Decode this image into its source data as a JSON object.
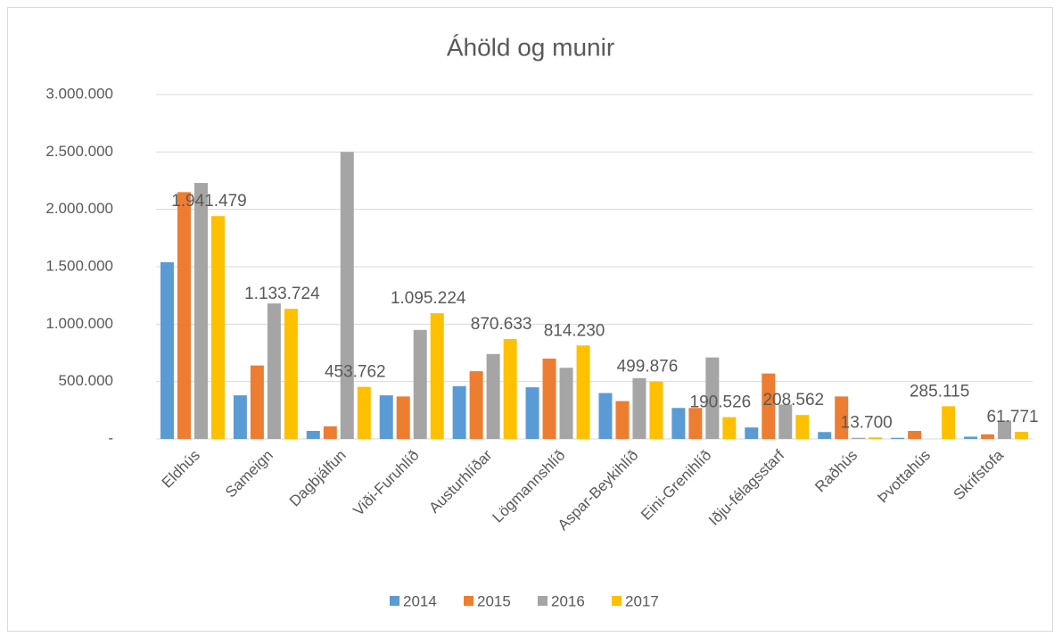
{
  "chart_data": {
    "type": "bar",
    "title": "Áhöld og munir",
    "categories": [
      "Eldhús",
      "Sameign",
      "Dagbjálfun",
      "Viði-Furuhlíð",
      "Austurhlíðar",
      "Lögmannshlíð",
      "Aspar-Beykihlíð",
      "Eini-Grenihlíð",
      "Iðju-félagsstarf",
      "Raðhús",
      "Þvottahús",
      "Skrifstofa"
    ],
    "series": [
      {
        "name": "2014",
        "color": "#5b9bd5",
        "values": [
          1540000,
          380000,
          70000,
          380000,
          460000,
          450000,
          400000,
          270000,
          100000,
          60000,
          10000,
          20000
        ]
      },
      {
        "name": "2015",
        "color": "#ed7d31",
        "values": [
          2150000,
          640000,
          110000,
          370000,
          590000,
          700000,
          330000,
          270000,
          570000,
          370000,
          70000,
          40000
        ]
      },
      {
        "name": "2016",
        "color": "#a5a5a5",
        "values": [
          2230000,
          1180000,
          2500000,
          950000,
          740000,
          620000,
          530000,
          710000,
          300000,
          10000,
          0,
          160000
        ]
      },
      {
        "name": "2017",
        "color": "#ffc000",
        "values": [
          1941479,
          1133724,
          453762,
          1095224,
          870633,
          814230,
          499876,
          190526,
          208562,
          13700,
          285115,
          61771
        ],
        "value_labels": [
          "1.941.479",
          "1.133.724",
          "453.762",
          "1.095.224",
          "870.633",
          "814.230",
          "499.876",
          "190.526",
          "208.562",
          "13.700",
          "285.115",
          "61.771"
        ]
      }
    ],
    "ylim": [
      0,
      3000000
    ],
    "yticks": [
      {
        "value": 0,
        "label": "-"
      },
      {
        "value": 500000,
        "label": "500.000"
      },
      {
        "value": 1000000,
        "label": "1.000.000"
      },
      {
        "value": 1500000,
        "label": "1.500.000"
      },
      {
        "value": 2000000,
        "label": "2.000.000"
      },
      {
        "value": 2500000,
        "label": "2.500.000"
      },
      {
        "value": 3000000,
        "label": "3.000.000"
      }
    ],
    "grid": true,
    "legend": "bottom"
  }
}
